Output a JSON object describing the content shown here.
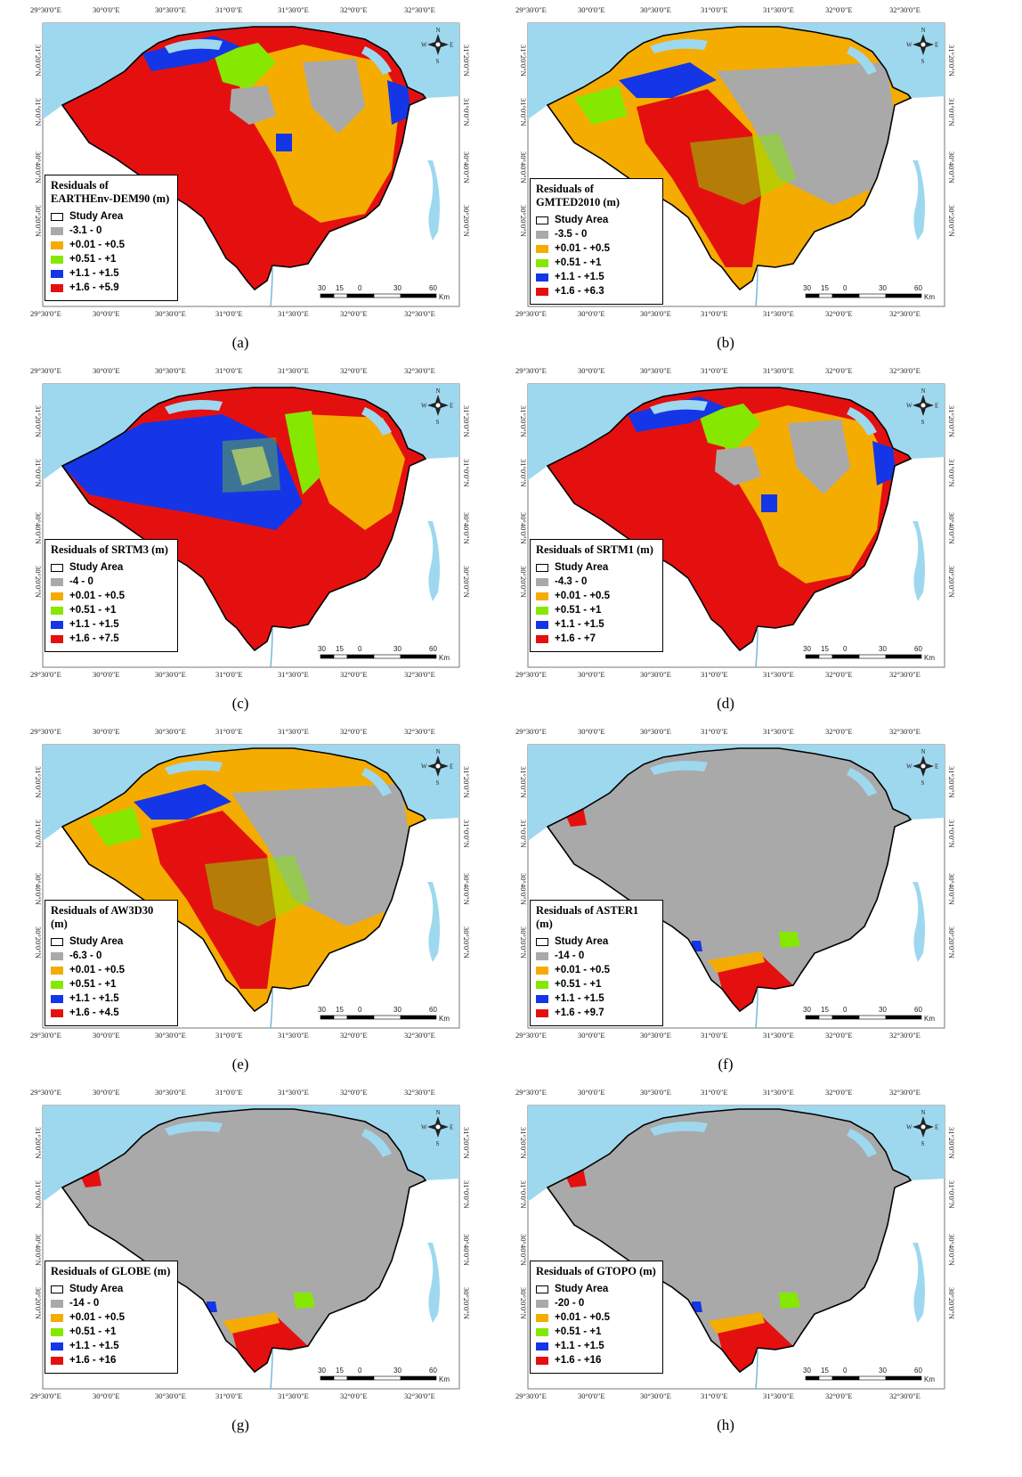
{
  "axes": {
    "top_labels": [
      "29°30'0\"E",
      "30°0'0\"E",
      "30°30'0\"E",
      "31°0'0\"E",
      "31°30'0\"E",
      "32°0'0\"E",
      "32°30'0\"E"
    ],
    "bottom_labels": [
      "29°30'0\"E",
      "30°0'0\"E",
      "30°30'0\"E",
      "31°0'0\"E",
      "31°30'0\"E",
      "32°0'0\"E",
      "32°30'0\"E"
    ],
    "side_labels": [
      "31°20'0\"N",
      "31°0'0\"N",
      "30°40'0\"N",
      "30°20'0\"N"
    ]
  },
  "scale_bar": {
    "ticks": [
      "30",
      "15",
      "0",
      "30",
      "60"
    ],
    "unit": "Km"
  },
  "compass": {
    "n": "N",
    "s": "S",
    "e": "E",
    "w": "W"
  },
  "legend_common": {
    "study_area": "Study Area"
  },
  "class_colors": {
    "negative": "#a9a9a9",
    "c1": "#f5ac00",
    "c2": "#86e800",
    "c3": "#1436e6",
    "c4": "#e41010",
    "sea": "#9ed8ef"
  },
  "class_labels": [
    "+0.01 - +0.5",
    "+0.51 - +1",
    "+1.1 - +1.5"
  ],
  "panels": [
    {
      "caption": "(a)",
      "title": "Residuals of EARTHEnv-DEM90 (m)",
      "neg": "-3.1 - 0",
      "top": "+1.6 - +5.9",
      "dominant": "red"
    },
    {
      "caption": "(b)",
      "title": "Residuals of GMTED2010 (m)",
      "neg": "-3.5 - 0",
      "top": "+1.6 - +6.3",
      "dominant": "grayorange"
    },
    {
      "caption": "(c)",
      "title": "Residuals of SRTM3 (m)",
      "neg": "-4 - 0",
      "top": "+1.6 - +7.5",
      "dominant": "redblue"
    },
    {
      "caption": "(d)",
      "title": "Residuals of SRTM1 (m)",
      "neg": "-4.3 - 0",
      "top": "+1.6 - +7",
      "dominant": "red"
    },
    {
      "caption": "(e)",
      "title": "Residuals of AW3D30 (m)",
      "neg": "-6.3 - 0",
      "top": "+1.6 - +4.5",
      "dominant": "grayorange"
    },
    {
      "caption": "(f)",
      "title": "Residuals of ASTER1 (m)",
      "neg": "-14 - 0",
      "top": "+1.6 - +9.7",
      "dominant": "gray"
    },
    {
      "caption": "(g)",
      "title": "Residuals of GLOBE (m)",
      "neg": "-14 - 0",
      "top": "+1.6 - +16",
      "dominant": "gray"
    },
    {
      "caption": "(h)",
      "title": "Residuals of GTOPO (m)",
      "neg": "-20 - 0",
      "top": "+1.6 - +16",
      "dominant": "gray"
    }
  ]
}
